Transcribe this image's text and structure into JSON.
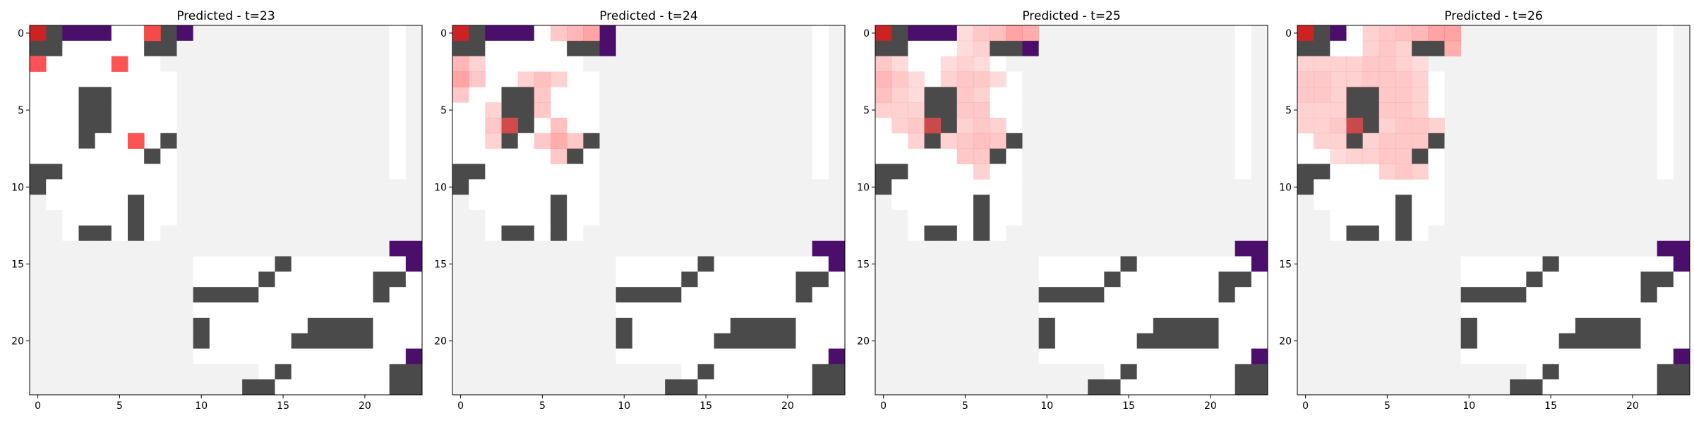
{
  "colors": {
    "unknown": "#f2f2f2",
    "free": "#ffffff",
    "wall": "#4a4a4a",
    "goal": "#4b0f6b",
    "agent": "#cc2222",
    "prediction": "#ff4a4a"
  },
  "chart_data": [
    {
      "type": "heatmap",
      "title": "Predicted - t=23",
      "grid_size": 24,
      "xticks": [
        "0",
        "5",
        "10",
        "15",
        "20"
      ],
      "yticks": [
        "0",
        "5",
        "10",
        "15",
        "20"
      ],
      "base_grid": [
        "AWGKKFFWWGUUUUUUUUUUUUFU",
        "WWFFFFFWWUUUUUUUUUUUUUFU",
        "FFFFFFFFUUUUUUUUUUUUUUFU",
        "FFFFFFFFFUUUUUUUUUUUUUFU",
        "FFFWWFFFFUUUUUUUUUUUUUFU",
        "FFFWWFFFFUUUUUUUUUUUUUFU",
        "FFFWWFFFFUUUUUUUUUUUUUFU",
        "FFFWFFFFWUUUUUUUUUUUUUFU",
        "FFFFFFFWFUUUUUUUUUUUUUFU",
        "WWFFFFFFFUUUUUUUUUUUUUFU",
        "WFFFFFFFFUUUUUUUUUUUUUUU",
        "UFFFFFWFFUUUUUUUUUUUUUUU",
        "UUFFFFWFFUUUUUUUUUUUUUUU",
        "UUFWWFWFUUUUUUUUUUUUUUUU",
        "UUUUUUUUUUUUUUUUUUUUUUGG",
        "UUUUUUUUUUFFFFFWFFFFFFFG",
        "UUUUUUUUUUFFFFWFFFFFFWWF",
        "UUUUUUUUUUWWWWFFFFFFFWFF",
        "UUUUUUUUUUFFFFFFFFFFFFFF",
        "UUUUUUUUUUWFFFFFFWWWWFFF",
        "UUUUUUUUUUWFFFFFWWWWWFFF",
        "UUUUUUUUUUFFFFFFFFFFFFFG",
        "UUUUUUUUUUUUUUFWFFFFFFWW",
        "UUUUUUUUUUUUUWWFFFFFFFWW"
      ],
      "prediction": [
        [
          0,
          7,
          0.95
        ],
        [
          2,
          0,
          0.95
        ],
        [
          2,
          5,
          0.95
        ],
        [
          7,
          6,
          0.95
        ]
      ]
    },
    {
      "type": "heatmap",
      "title": "Predicted - t=24",
      "grid_size": 24,
      "xticks": [
        "0",
        "5",
        "10",
        "15",
        "20"
      ],
      "yticks": [
        "0",
        "5",
        "10",
        "15",
        "20"
      ],
      "base_grid": [
        "AWGKKFFFFGUUUUUUUUUUUUFU",
        "WWFFFFFWWGUUUUUUUUUUUUFU",
        "FFFFFFFFUUUUUUUUUUUUUUFU",
        "FFFFFFFFFUUUUUUUUUUUUUFU",
        "FFFWWFFFFUUUUUUUUUUUUUFU",
        "FFFWWFFFFUUUUUUUUUUUUUFU",
        "FFFWWFFFFUUUUUUUUUUUUUFU",
        "FFFWFFFFWUUUUUUUUUUUUUFU",
        "FFFFFFFWFUUUUUUUUUUUUUFU",
        "WWFFFFFFFUUUUUUUUUUUUUFU",
        "WFFFFFFFFUUUUUUUUUUUUUUU",
        "UFFFFFWFFUUUUUUUUUUUUUUU",
        "UUFFFFWFFUUUUUUUUUUUUUUU",
        "UUFWWFWFUUUUUUUUUUUUUUUU",
        "UUUUUUUUUUUUUUUUUUUUUUGG",
        "UUUUUUUUUUFFFFFWFFFFFFFG",
        "UUUUUUUUUUFFFFWFFFFFFWWF",
        "UUUUUUUUUUWWWWFFFFFFFWFF",
        "UUUUUUUUUUFFFFFFFFFFFFFF",
        "UUUUUUUUUUWFFFFFFWWWWFFF",
        "UUUUUUUUUUWFFFFFWWWWWFFF",
        "UUUUUUUUUUFFFFFFFFFFFFFG",
        "UUUUUUUUUUUUUUFWFFFFFFWW",
        "UUUUUUUUUUUUUWWFFFFFFFWW"
      ],
      "prediction": [
        [
          0,
          6,
          0.3
        ],
        [
          0,
          7,
          0.4
        ],
        [
          0,
          8,
          0.5
        ],
        [
          2,
          0,
          0.4
        ],
        [
          2,
          1,
          0.25
        ],
        [
          3,
          0,
          0.5
        ],
        [
          3,
          1,
          0.3
        ],
        [
          3,
          4,
          0.25
        ],
        [
          3,
          5,
          0.35
        ],
        [
          3,
          6,
          0.25
        ],
        [
          4,
          0,
          0.3
        ],
        [
          4,
          5,
          0.3
        ],
        [
          5,
          2,
          0.25
        ],
        [
          5,
          5,
          0.3
        ],
        [
          6,
          2,
          0.3
        ],
        [
          6,
          3,
          0.75
        ],
        [
          6,
          6,
          0.35
        ],
        [
          7,
          2,
          0.25
        ],
        [
          7,
          5,
          0.3
        ],
        [
          7,
          6,
          0.45
        ],
        [
          7,
          7,
          0.3
        ],
        [
          8,
          6,
          0.3
        ]
      ]
    },
    {
      "type": "heatmap",
      "title": "Predicted - t=25",
      "grid_size": 24,
      "xticks": [
        "0",
        "5",
        "10",
        "15",
        "20"
      ],
      "yticks": [
        "0",
        "5",
        "10",
        "15",
        "20"
      ],
      "base_grid": [
        "AWGKKFFFFFUUUUUUUUUUUUFU",
        "WWFFFFFWWGUUUUUUUUUUUUFU",
        "FFFFFFFFUUUUUUUUUUUUUUFU",
        "FFFFFFFFFUUUUUUUUUUUUUFU",
        "FFFWWFFFFUUUUUUUUUUUUUFU",
        "FFFWWFFFFUUUUUUUUUUUUUFU",
        "FFFWWFFFFUUUUUUUUUUUUUFU",
        "FFFWFFFFWUUUUUUUUUUUUUFU",
        "FFFFFFFWFUUUUUUUUUUUUUFU",
        "WWFFFFFFFUUUUUUUUUUUUUFU",
        "WFFFFFFFFUUUUUUUUUUUUUUU",
        "UFFFFFWFFUUUUUUUUUUUUUUU",
        "UUFFFFWFFUUUUUUUUUUUUUUU",
        "UUFWWFWFUUUUUUUUUUUUUUUU",
        "UUUUUUUUUUUUUUUUUUUUUUGG",
        "UUUUUUUUUUFFFFFWFFFFFFFG",
        "UUUUUUUUUUFFFFWFFFFFFWWF",
        "UUUUUUUUUUWWWWFFFFFFFWFF",
        "UUUUUUUUUUFFFFFFFFFFFFFF",
        "UUUUUUUUUUWFFFFFFWWWWFFF",
        "UUUUUUUUUUWFFFFFWWWWWFFF",
        "UUUUUUUUUUFFFFFFFFFFFFFG",
        "UUUUUUUUUUUUUUFWFFFFFFWW",
        "UUUUUUUUUUUUUWWFFFFFFFWW"
      ],
      "prediction": [
        [
          0,
          5,
          0.2
        ],
        [
          0,
          6,
          0.3
        ],
        [
          0,
          7,
          0.35
        ],
        [
          0,
          8,
          0.5
        ],
        [
          0,
          9,
          0.45
        ],
        [
          1,
          5,
          0.2
        ],
        [
          1,
          6,
          0.25
        ],
        [
          2,
          0,
          0.3
        ],
        [
          2,
          1,
          0.2
        ],
        [
          2,
          4,
          0.2
        ],
        [
          2,
          5,
          0.25
        ],
        [
          2,
          6,
          0.2
        ],
        [
          3,
          0,
          0.4
        ],
        [
          3,
          1,
          0.3
        ],
        [
          3,
          2,
          0.2
        ],
        [
          3,
          4,
          0.25
        ],
        [
          3,
          5,
          0.3
        ],
        [
          3,
          6,
          0.3
        ],
        [
          3,
          7,
          0.2
        ],
        [
          4,
          0,
          0.35
        ],
        [
          4,
          1,
          0.25
        ],
        [
          4,
          2,
          0.2
        ],
        [
          4,
          5,
          0.3
        ],
        [
          4,
          6,
          0.25
        ],
        [
          5,
          0,
          0.25
        ],
        [
          5,
          1,
          0.25
        ],
        [
          5,
          2,
          0.25
        ],
        [
          5,
          5,
          0.3
        ],
        [
          5,
          6,
          0.3
        ],
        [
          6,
          1,
          0.25
        ],
        [
          6,
          2,
          0.3
        ],
        [
          6,
          3,
          0.7
        ],
        [
          6,
          5,
          0.25
        ],
        [
          6,
          6,
          0.3
        ],
        [
          6,
          7,
          0.25
        ],
        [
          7,
          2,
          0.25
        ],
        [
          7,
          4,
          0.25
        ],
        [
          7,
          5,
          0.3
        ],
        [
          7,
          6,
          0.35
        ],
        [
          7,
          7,
          0.3
        ],
        [
          8,
          5,
          0.3
        ],
        [
          8,
          6,
          0.3
        ],
        [
          9,
          6,
          0.25
        ]
      ]
    },
    {
      "type": "heatmap",
      "title": "Predicted - t=26",
      "grid_size": 24,
      "xticks": [
        "0",
        "5",
        "10",
        "15",
        "20"
      ],
      "yticks": [
        "0",
        "5",
        "10",
        "15",
        "20"
      ],
      "base_grid": [
        "AWGFFFFFFFUUUUUUUUUUUUFU",
        "WWFFFFFWWFUUUUUUUUUUUUFU",
        "FFFFFFFFUUUUUUUUUUUUUUFU",
        "FFFFFFFFFUUUUUUUUUUUUUFU",
        "FFFWWFFFFUUUUUUUUUUUUUFU",
        "FFFWWFFFFUUUUUUUUUUUUUFU",
        "FFFWWFFFFUUUUUUUUUUUUUFU",
        "FFFWFFFFWUUUUUUUUUUUUUFU",
        "FFFFFFFWFUUUUUUUUUUUUUFU",
        "WWFFFFFFFUUUUUUUUUUUUUFU",
        "WFFFFFFFFUUUUUUUUUUUUUUU",
        "UFFFFFWFFUUUUUUUUUUUUUUU",
        "UUFFFFWFFUUUUUUUUUUUUUUU",
        "UUFWWFWFUUUUUUUUUUUUUUUU",
        "UUUUUUUUUUUUUUUUUUUUUUGG",
        "UUUUUUUUUUFFFFFWFFFFFFFG",
        "UUUUUUUUUUFFFFWFFFFFFWWF",
        "UUUUUUUUUUWWWWFFFFFFFWFF",
        "UUUUUUUUUUFFFFFFFFFFFFFF",
        "UUUUUUUUUUWFFFFFFWWWWFFF",
        "UUUUUUUUUUWFFFFFWWWWWFFF",
        "UUUUUUUUUUFFFFFFFFFFFFFG",
        "UUUUUUUUUUUUUUFWFFFFFFWW",
        "UUUUUUUUUUUUUWWFFFFFFFWW"
      ],
      "prediction": [
        [
          0,
          4,
          0.25
        ],
        [
          0,
          5,
          0.3
        ],
        [
          0,
          6,
          0.35
        ],
        [
          0,
          7,
          0.4
        ],
        [
          0,
          8,
          0.5
        ],
        [
          0,
          9,
          0.5
        ],
        [
          1,
          4,
          0.25
        ],
        [
          1,
          5,
          0.3
        ],
        [
          1,
          6,
          0.25
        ],
        [
          1,
          9,
          0.45
        ],
        [
          2,
          0,
          0.25
        ],
        [
          2,
          1,
          0.25
        ],
        [
          2,
          2,
          0.25
        ],
        [
          2,
          3,
          0.25
        ],
        [
          2,
          4,
          0.3
        ],
        [
          2,
          5,
          0.3
        ],
        [
          2,
          6,
          0.25
        ],
        [
          2,
          7,
          0.2
        ],
        [
          3,
          0,
          0.3
        ],
        [
          3,
          1,
          0.3
        ],
        [
          3,
          2,
          0.25
        ],
        [
          3,
          3,
          0.25
        ],
        [
          3,
          4,
          0.3
        ],
        [
          3,
          5,
          0.3
        ],
        [
          3,
          6,
          0.3
        ],
        [
          3,
          7,
          0.25
        ],
        [
          4,
          0,
          0.3
        ],
        [
          4,
          1,
          0.3
        ],
        [
          4,
          2,
          0.25
        ],
        [
          4,
          5,
          0.3
        ],
        [
          4,
          6,
          0.3
        ],
        [
          4,
          7,
          0.25
        ],
        [
          5,
          0,
          0.25
        ],
        [
          5,
          1,
          0.25
        ],
        [
          5,
          2,
          0.25
        ],
        [
          5,
          5,
          0.3
        ],
        [
          5,
          6,
          0.3
        ],
        [
          5,
          7,
          0.25
        ],
        [
          6,
          0,
          0.25
        ],
        [
          6,
          1,
          0.25
        ],
        [
          6,
          2,
          0.3
        ],
        [
          6,
          3,
          0.7
        ],
        [
          6,
          5,
          0.25
        ],
        [
          6,
          6,
          0.3
        ],
        [
          6,
          7,
          0.3
        ],
        [
          6,
          8,
          0.25
        ],
        [
          7,
          1,
          0.25
        ],
        [
          7,
          2,
          0.25
        ],
        [
          7,
          4,
          0.25
        ],
        [
          7,
          5,
          0.3
        ],
        [
          7,
          6,
          0.3
        ],
        [
          7,
          7,
          0.3
        ],
        [
          8,
          2,
          0.2
        ],
        [
          8,
          3,
          0.25
        ],
        [
          8,
          4,
          0.25
        ],
        [
          8,
          5,
          0.3
        ],
        [
          8,
          6,
          0.3
        ],
        [
          9,
          5,
          0.25
        ],
        [
          9,
          6,
          0.3
        ],
        [
          9,
          7,
          0.25
        ]
      ]
    }
  ]
}
